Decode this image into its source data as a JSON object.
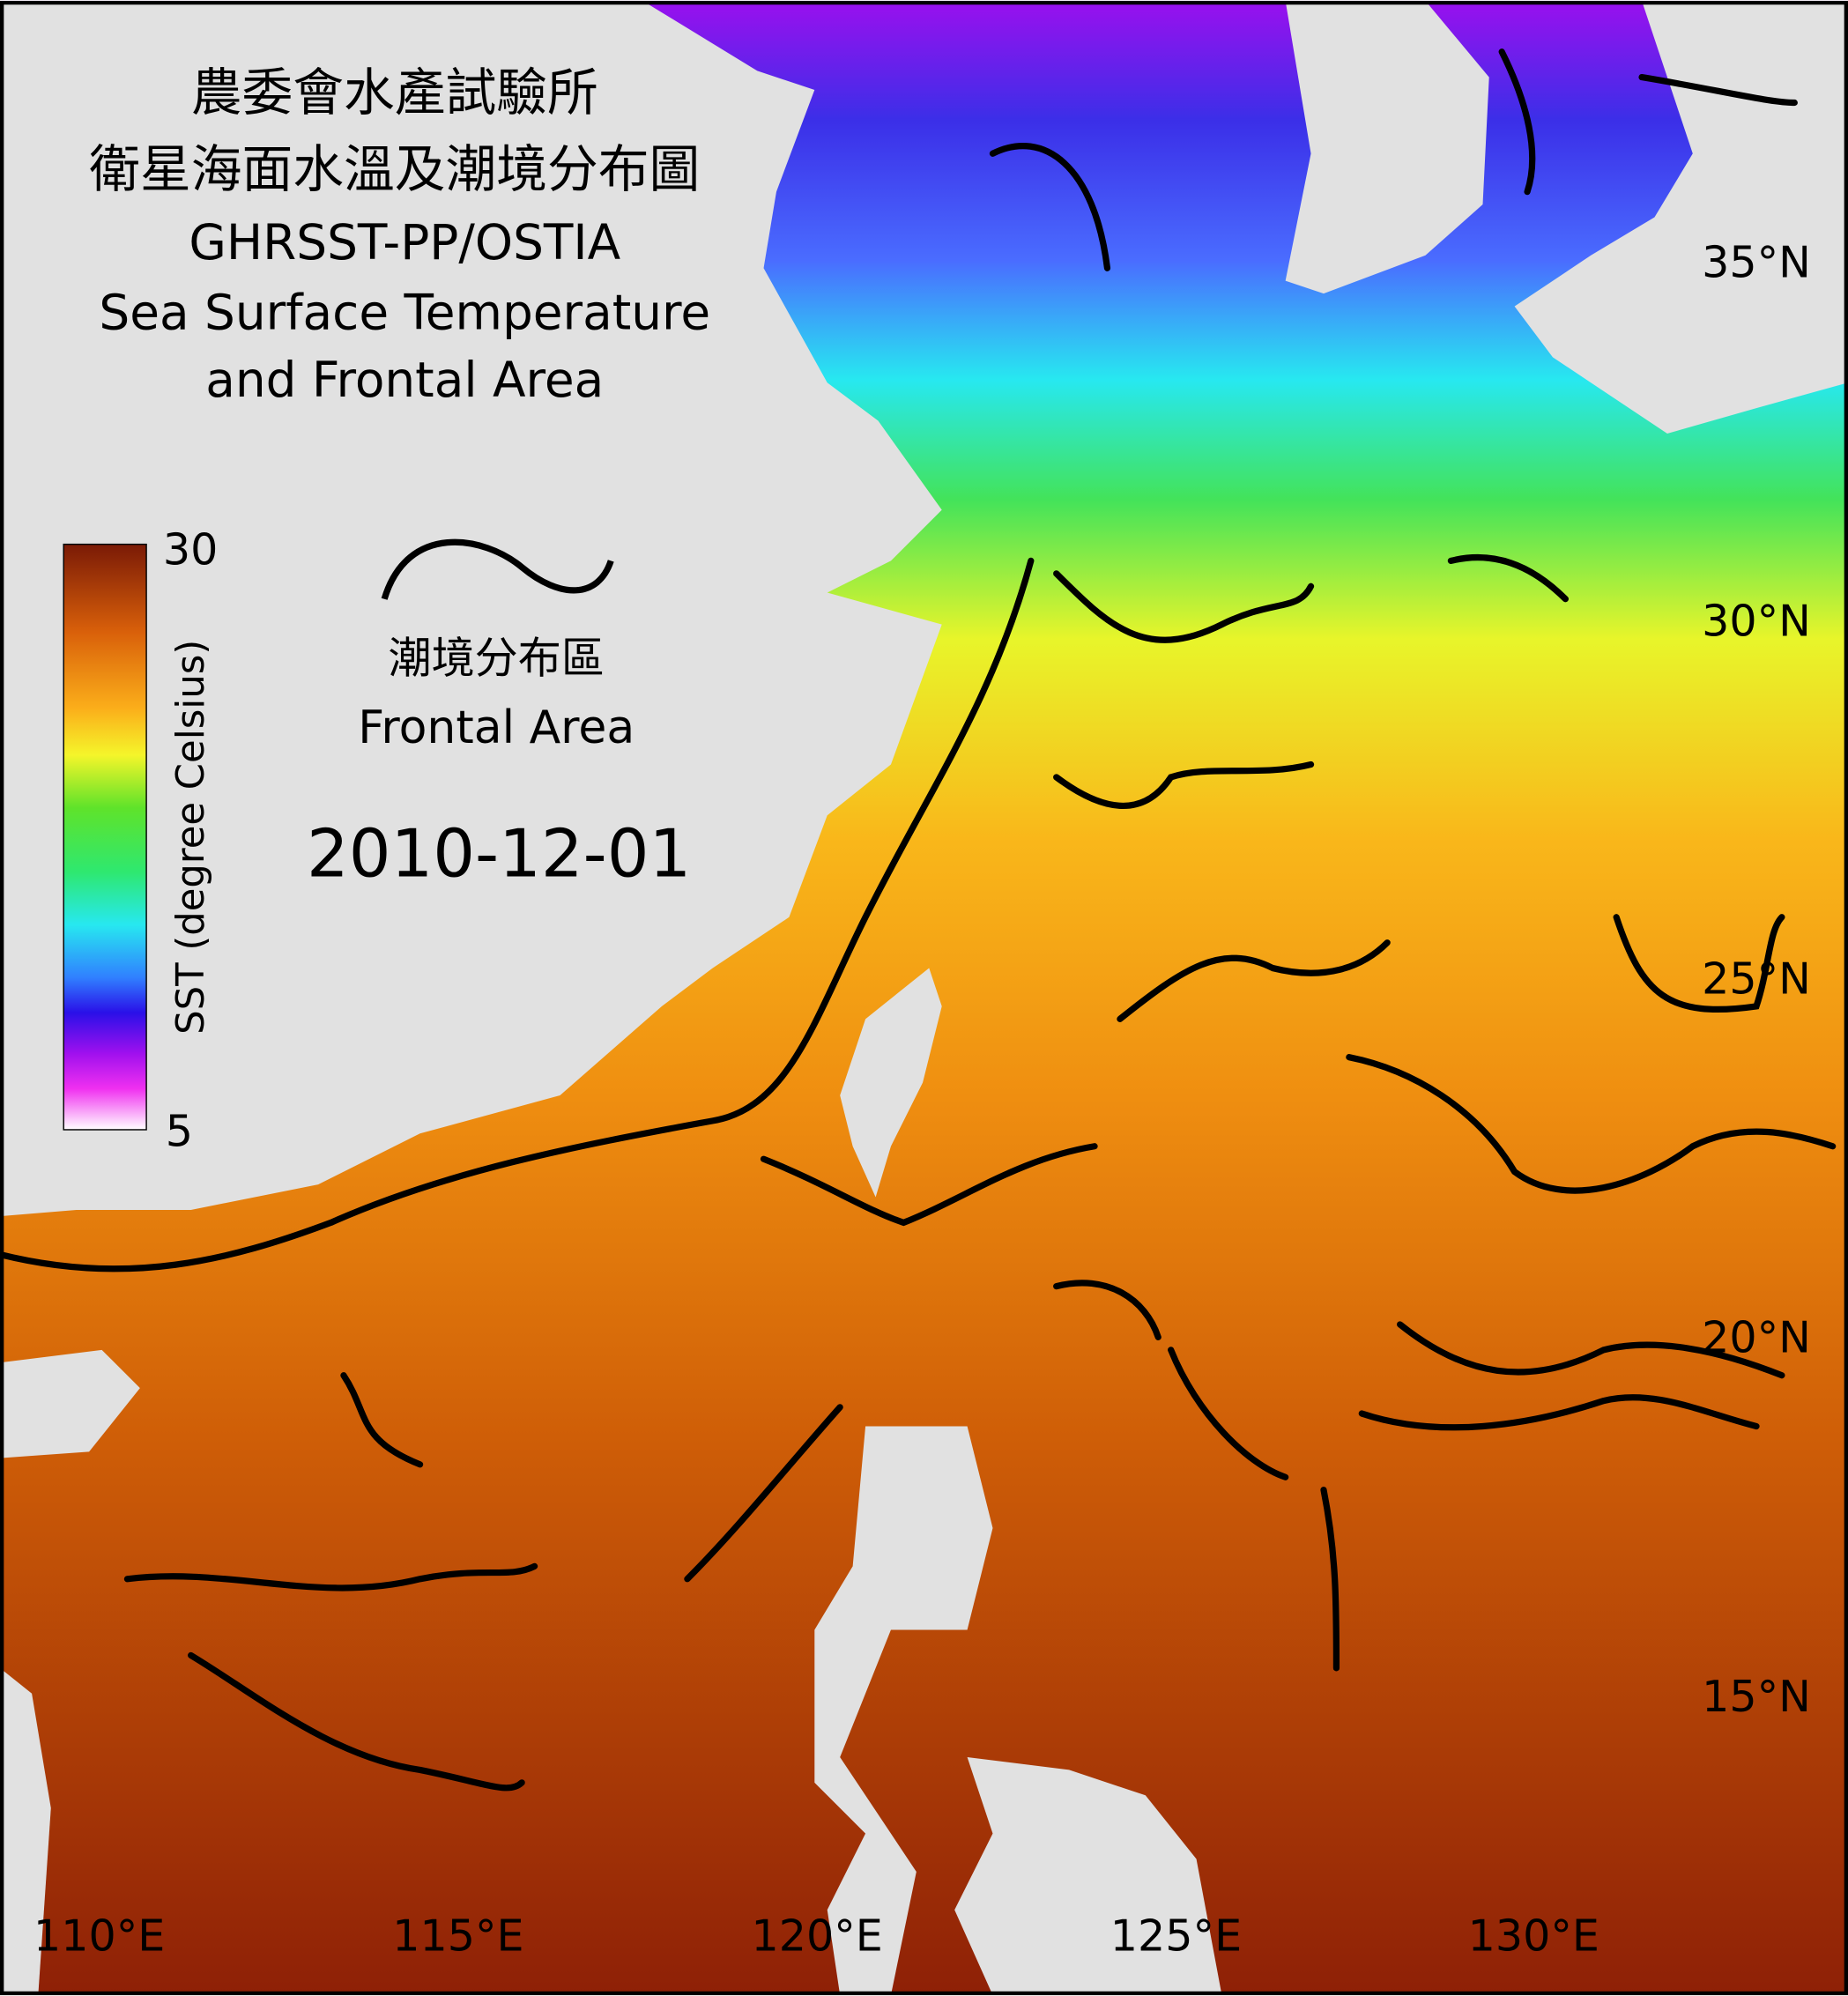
{
  "header": {
    "title_lines": [
      "農委會水產試驗所",
      "衛星海面水溫及潮境分布圖",
      "GHRSST-PP/OSTIA",
      "Sea Surface Temperature",
      "and Frontal Area"
    ]
  },
  "colorbar": {
    "label": "SST (degree Celsius)",
    "ticks": [
      "30",
      "5"
    ]
  },
  "legend": {
    "label_zh": "潮境分布區",
    "label_en": "Frontal Area"
  },
  "date": "2010-12-01",
  "latitude_labels": [
    "35°N",
    "30°N",
    "25°N",
    "20°N",
    "15°N"
  ],
  "longitude_labels": [
    "110°E",
    "115°E",
    "120°E",
    "125°E",
    "130°E"
  ]
}
